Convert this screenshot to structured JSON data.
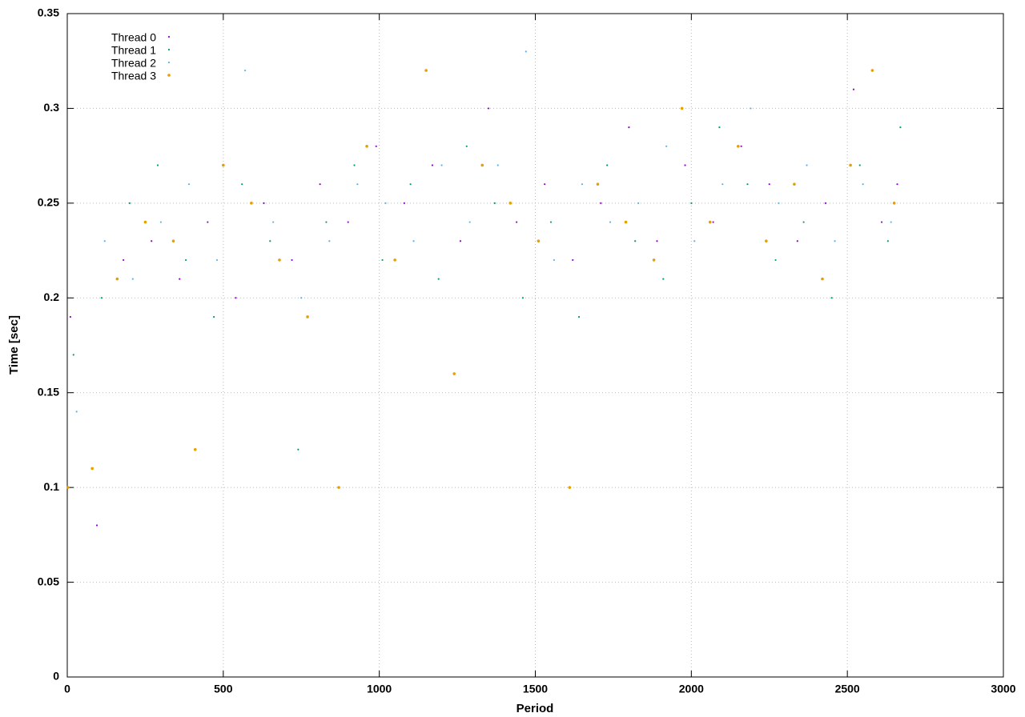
{
  "chart_data": {
    "type": "scatter",
    "x_label": "Period",
    "y_label": "Time [sec]",
    "xlim": [
      0,
      3000
    ],
    "ylim": [
      0,
      0.35
    ],
    "xticks": [
      0,
      500,
      1000,
      1500,
      2000,
      2500,
      3000
    ],
    "yticks": [
      0,
      0.05,
      0.1,
      0.15,
      0.2,
      0.25,
      0.3,
      0.35
    ],
    "grid": true,
    "legend": "top-left",
    "series": [
      {
        "name": "Thread 0",
        "color": "#9400d3",
        "x": [
          10,
          95,
          180,
          270,
          360,
          450,
          540,
          630,
          720,
          810,
          900,
          990,
          1080,
          1170,
          1260,
          1350,
          1440,
          1530,
          1620,
          1710,
          1800,
          1890,
          1980,
          2070,
          2160,
          2250,
          2340,
          2430,
          2520,
          2610,
          2660
        ],
        "values": [
          0.19,
          0.08,
          0.22,
          0.23,
          0.21,
          0.24,
          0.2,
          0.25,
          0.22,
          0.26,
          0.24,
          0.28,
          0.25,
          0.27,
          0.23,
          0.3,
          0.24,
          0.26,
          0.22,
          0.25,
          0.29,
          0.23,
          0.27,
          0.24,
          0.28,
          0.26,
          0.23,
          0.25,
          0.31,
          0.24,
          0.26
        ]
      },
      {
        "name": "Thread 1",
        "color": "#009e73",
        "x": [
          20,
          110,
          200,
          290,
          380,
          470,
          560,
          650,
          740,
          830,
          920,
          1010,
          1100,
          1190,
          1280,
          1370,
          1460,
          1550,
          1640,
          1730,
          1820,
          1910,
          2000,
          2090,
          2180,
          2270,
          2360,
          2450,
          2540,
          2630,
          2670
        ],
        "values": [
          0.17,
          0.2,
          0.25,
          0.27,
          0.22,
          0.19,
          0.26,
          0.23,
          0.12,
          0.24,
          0.27,
          0.22,
          0.26,
          0.21,
          0.28,
          0.25,
          0.2,
          0.24,
          0.19,
          0.27,
          0.23,
          0.21,
          0.25,
          0.29,
          0.26,
          0.22,
          0.24,
          0.2,
          0.27,
          0.23,
          0.29
        ]
      },
      {
        "name": "Thread 2",
        "color": "#56b4e9",
        "x": [
          30,
          120,
          210,
          300,
          390,
          480,
          570,
          660,
          750,
          840,
          930,
          1020,
          1110,
          1200,
          1290,
          1380,
          1470,
          1560,
          1650,
          1740,
          1830,
          1920,
          2010,
          2100,
          2190,
          2280,
          2370,
          2460,
          2550,
          2640
        ],
        "values": [
          0.14,
          0.23,
          0.21,
          0.24,
          0.26,
          0.22,
          0.32,
          0.24,
          0.2,
          0.23,
          0.26,
          0.25,
          0.23,
          0.27,
          0.24,
          0.27,
          0.33,
          0.22,
          0.26,
          0.24,
          0.25,
          0.28,
          0.23,
          0.26,
          0.3,
          0.25,
          0.27,
          0.23,
          0.26,
          0.24
        ]
      },
      {
        "name": "Thread 3",
        "color": "#e69f00",
        "x": [
          2,
          80,
          160,
          250,
          340,
          410,
          500,
          590,
          680,
          770,
          870,
          960,
          1050,
          1150,
          1240,
          1330,
          1420,
          1510,
          1610,
          1700,
          1790,
          1880,
          1970,
          2060,
          2150,
          2240,
          2330,
          2420,
          2510,
          2580,
          2650
        ],
        "values": [
          0.1,
          0.11,
          0.21,
          0.24,
          0.23,
          0.12,
          0.27,
          0.25,
          0.22,
          0.19,
          0.1,
          0.28,
          0.22,
          0.32,
          0.16,
          0.27,
          0.25,
          0.23,
          0.1,
          0.26,
          0.24,
          0.22,
          0.3,
          0.24,
          0.28,
          0.23,
          0.26,
          0.21,
          0.27,
          0.32,
          0.25
        ]
      }
    ]
  }
}
